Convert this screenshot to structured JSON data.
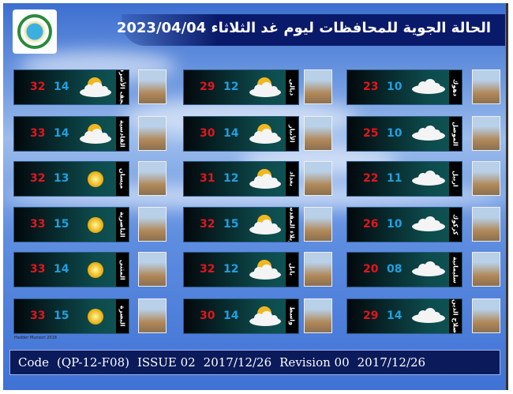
{
  "header": {
    "title": "الحالة الجوية للمحافظات ليوم غد الثلاثاء 2023/04/04"
  },
  "colors": {
    "max": "#e0161c",
    "min": "#1fa0e0",
    "title_bar": "#0a1a6a"
  },
  "columns": [
    [
      {
        "name": "النجف الأشرف",
        "max": "32",
        "min": "14",
        "icon": "partly-cloudy-icon"
      },
      {
        "name": "القادسية",
        "max": "33",
        "min": "14",
        "icon": "partly-cloudy-icon"
      },
      {
        "name": "ميسان",
        "max": "32",
        "min": "13",
        "icon": "sun-icon"
      },
      {
        "name": "الناصرية",
        "max": "33",
        "min": "15",
        "icon": "sun-icon"
      },
      {
        "name": "المثنى",
        "max": "33",
        "min": "14",
        "icon": "sun-icon"
      },
      {
        "name": "البصرة",
        "max": "33",
        "min": "15",
        "icon": "sun-icon"
      }
    ],
    [
      {
        "name": "ديالى",
        "max": "29",
        "min": "12",
        "icon": "partly-cloudy-icon"
      },
      {
        "name": "الأنبار",
        "max": "30",
        "min": "14",
        "icon": "partly-cloudy-icon"
      },
      {
        "name": "بغداد",
        "max": "31",
        "min": "12",
        "icon": "partly-cloudy-icon"
      },
      {
        "name": "كربلاء المقدسة",
        "max": "32",
        "min": "15",
        "icon": "partly-cloudy-icon"
      },
      {
        "name": "بابل",
        "max": "32",
        "min": "12",
        "icon": "partly-cloudy-icon"
      },
      {
        "name": "واسط",
        "max": "30",
        "min": "14",
        "icon": "partly-cloudy-icon"
      }
    ],
    [
      {
        "name": "دهوك",
        "max": "23",
        "min": "10",
        "icon": "cloud-icon"
      },
      {
        "name": "الموصل",
        "max": "25",
        "min": "10",
        "icon": "cloud-icon"
      },
      {
        "name": "اربيل",
        "max": "22",
        "min": "11",
        "icon": "cloud-icon"
      },
      {
        "name": "كركوك",
        "max": "26",
        "min": "10",
        "icon": "cloud-icon"
      },
      {
        "name": "سليمانية",
        "max": "20",
        "min": "08",
        "icon": "cloud-icon"
      },
      {
        "name": "صلاح الدين",
        "max": "29",
        "min": "14",
        "icon": "cloud-icon"
      }
    ]
  ],
  "credit": "Hadder Munsori 2018",
  "footer": {
    "code": "Code",
    "form": "(QP-12-F08)",
    "issue": "ISSUE 02",
    "issue_date": "2017/12/26",
    "revision": "Revision 00",
    "revision_date": "2017/12/26"
  }
}
